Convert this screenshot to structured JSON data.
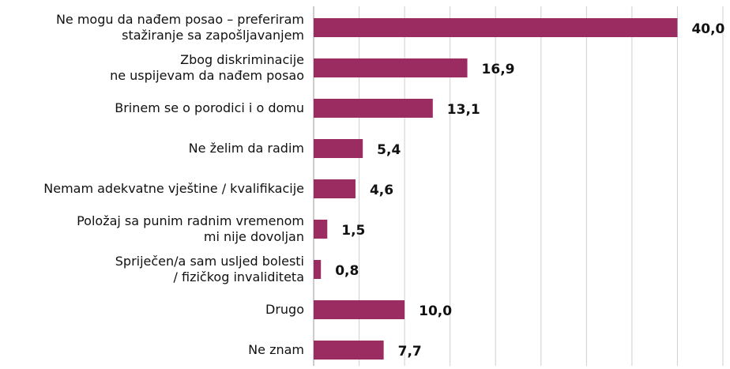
{
  "chart_data": {
    "type": "bar",
    "orientation": "horizontal",
    "categories": [
      [
        "Ne mogu da nađem posao – preferiram",
        "stažiranje sa  zapošljavanjem"
      ],
      [
        "Zbog diskriminacije",
        "ne uspijevam da nađem posao"
      ],
      [
        "Brinem se o porodici i o domu"
      ],
      [
        "Ne želim da radim"
      ],
      [
        "Nemam adekvatne vještine / kvalifikacije"
      ],
      [
        "Položaj sa punim radnim vremenom",
        "mi nije dovoljan"
      ],
      [
        "Spriječen/a sam usljed bolesti",
        "/ fizičkog invaliditeta"
      ],
      [
        "Drugo"
      ],
      [
        "Ne znam"
      ]
    ],
    "values": [
      40.0,
      16.9,
      13.1,
      5.4,
      4.6,
      1.5,
      0.8,
      10.0,
      7.7
    ],
    "value_labels": [
      "40,0",
      "16,9",
      "13,1",
      "5,4",
      "4,6",
      "1,5",
      "0,8",
      "10,0",
      "7,7"
    ],
    "color": "#9b2c62",
    "xlim": [
      0,
      45
    ],
    "xticks": [
      0,
      5,
      10,
      15,
      20,
      25,
      30,
      35,
      40,
      45
    ],
    "grid": true
  }
}
